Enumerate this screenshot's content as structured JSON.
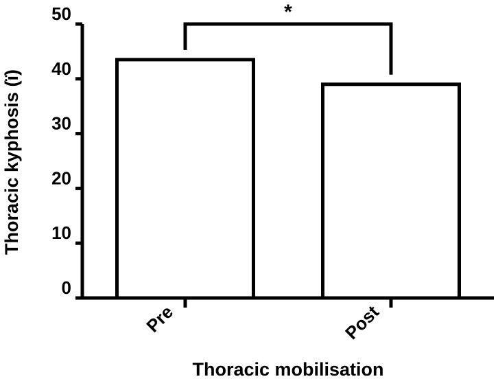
{
  "chart_data": {
    "type": "bar",
    "categories": [
      "Pre",
      "Post"
    ],
    "values": [
      43.5,
      39
    ],
    "xlabel": "Thoracic mobilisation",
    "ylabel": "Thoracic kyphosis (ï)",
    "ylim": [
      0,
      50
    ],
    "yticks": [
      0,
      10,
      20,
      30,
      40,
      50
    ],
    "grid": false,
    "significance": {
      "between": [
        "Pre",
        "Post"
      ],
      "label": "*"
    }
  }
}
